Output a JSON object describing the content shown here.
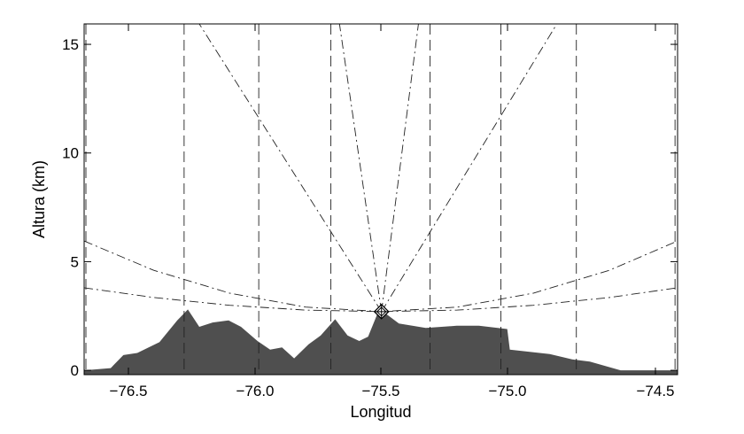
{
  "chart_data": {
    "type": "area",
    "title": "",
    "xlabel": "Longitud",
    "ylabel": "Altura (km)",
    "xlim": [
      -76.675,
      -74.33
    ],
    "ylim": [
      -0.2,
      15.94
    ],
    "grid": false,
    "x_ticks": [
      "−76.5",
      "−76.0",
      "−75.5",
      "−75.0",
      "−74.5"
    ],
    "y_ticks": [
      {
        "value": 0,
        "label": "0"
      },
      {
        "value": 5,
        "label": "5"
      },
      {
        "value": 10,
        "label": "10"
      },
      {
        "value": 15,
        "label": "15"
      }
    ],
    "terrain": {
      "color": "#4f4f4f",
      "points": [
        [
          -76.675,
          0.0
        ],
        [
          -76.57,
          0.1
        ],
        [
          -76.52,
          0.7
        ],
        [
          -76.465,
          0.8
        ],
        [
          -76.377,
          1.3
        ],
        [
          -76.307,
          2.3
        ],
        [
          -76.265,
          2.8
        ],
        [
          -76.22,
          2.0
        ],
        [
          -76.167,
          2.2
        ],
        [
          -76.104,
          2.3
        ],
        [
          -76.055,
          2.0
        ],
        [
          -75.99,
          1.35
        ],
        [
          -75.94,
          0.95
        ],
        [
          -75.893,
          1.05
        ],
        [
          -75.845,
          0.55
        ],
        [
          -75.788,
          1.2
        ],
        [
          -75.74,
          1.6
        ],
        [
          -75.683,
          2.35
        ],
        [
          -75.634,
          1.6
        ],
        [
          -75.588,
          1.35
        ],
        [
          -75.553,
          1.55
        ],
        [
          -75.518,
          2.55
        ],
        [
          -75.494,
          2.7
        ],
        [
          -75.431,
          2.15
        ],
        [
          -75.325,
          1.95
        ],
        [
          -75.203,
          2.05
        ],
        [
          -75.115,
          2.05
        ],
        [
          -75.003,
          1.9
        ],
        [
          -74.993,
          0.95
        ],
        [
          -74.835,
          0.75
        ],
        [
          -74.747,
          0.5
        ],
        [
          -74.677,
          0.4
        ],
        [
          -74.555,
          0.0
        ],
        [
          -74.33,
          0.0
        ]
      ]
    },
    "station": {
      "lon": -75.5,
      "alt": 2.7,
      "marker": "diamond"
    },
    "vertical_dashed_lines": [
      -76.668,
      -76.28,
      -75.985,
      -75.7,
      -75.308,
      -75.028,
      -74.73,
      -74.34
    ],
    "dash_dot_rays": [
      [
        [
          -75.5,
          2.7
        ],
        [
          -76.22,
          15.94
        ]
      ],
      [
        [
          -75.5,
          2.7
        ],
        [
          -75.666,
          15.94
        ]
      ],
      [
        [
          -75.5,
          2.7
        ],
        [
          -75.354,
          15.94
        ]
      ],
      [
        [
          -75.5,
          2.7
        ],
        [
          -74.807,
          15.94
        ]
      ]
    ],
    "dash_dot_curves": [
      [
        [
          -76.675,
          5.95
        ],
        [
          -76.4,
          4.6
        ],
        [
          -76.1,
          3.55
        ],
        [
          -75.8,
          2.91
        ],
        [
          -75.5,
          2.7
        ],
        [
          -75.2,
          2.91
        ],
        [
          -74.9,
          3.55
        ],
        [
          -74.6,
          4.6
        ],
        [
          -74.33,
          5.95
        ]
      ],
      [
        [
          -76.675,
          3.8
        ],
        [
          -76.4,
          3.35
        ],
        [
          -76.1,
          2.99
        ],
        [
          -75.8,
          2.77
        ],
        [
          -75.5,
          2.7
        ],
        [
          -75.2,
          2.77
        ],
        [
          -74.9,
          2.99
        ],
        [
          -74.6,
          3.35
        ],
        [
          -74.33,
          3.8
        ]
      ]
    ]
  }
}
